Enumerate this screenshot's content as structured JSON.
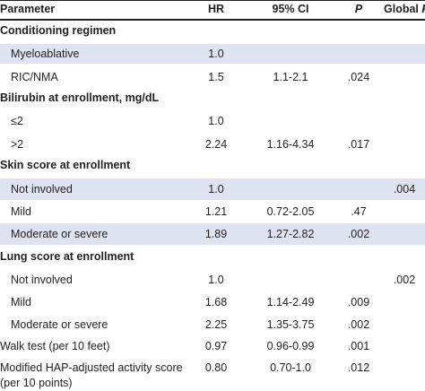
{
  "headers": {
    "parameter": "Parameter",
    "hr": "HR",
    "ci": "95% CI",
    "p": "P",
    "global_p": "Global P"
  },
  "sections": [
    {
      "title": "Conditioning regimen",
      "rows": [
        {
          "label": "Myeloablative",
          "hr": "1.0",
          "ci": "",
          "p": "",
          "global_p": "",
          "shaded": true
        },
        {
          "label": "RIC/NMA",
          "hr": "1.5",
          "ci": "1.1-2.1",
          "p": ".024",
          "global_p": "",
          "shaded": false
        }
      ]
    },
    {
      "title": "Bilirubin at enrollment, mg/dL",
      "rows": [
        {
          "label": "≤2",
          "hr": "1.0",
          "ci": "",
          "p": "",
          "global_p": "",
          "shaded": false
        },
        {
          "label": ">2",
          "hr": "2.24",
          "ci": "1.16-4.34",
          "p": ".017",
          "global_p": "",
          "shaded": false
        }
      ]
    },
    {
      "title": "Skin score at enrollment",
      "rows": [
        {
          "label": "Not involved",
          "hr": "1.0",
          "ci": "",
          "p": "",
          "global_p": ".004",
          "shaded": true
        },
        {
          "label": "Mild",
          "hr": "1.21",
          "ci": "0.72-2.05",
          "p": ".47",
          "global_p": "",
          "shaded": false
        },
        {
          "label": "Moderate or severe",
          "hr": "1.89",
          "ci": "1.27-2.82",
          "p": ".002",
          "global_p": "",
          "shaded": true
        }
      ]
    },
    {
      "title": "Lung score at enrollment",
      "rows": [
        {
          "label": "Not involved",
          "hr": "1.0",
          "ci": "",
          "p": "",
          "global_p": ".002",
          "shaded": false
        },
        {
          "label": "Mild",
          "hr": "1.68",
          "ci": "1.14-2.49",
          "p": ".009",
          "global_p": "",
          "shaded": false
        },
        {
          "label": "Moderate or severe",
          "hr": "2.25",
          "ci": "1.35-3.75",
          "p": ".002",
          "global_p": "",
          "shaded": false
        }
      ]
    }
  ],
  "extra_rows": [
    {
      "label": "Walk test (per 10 feet)",
      "hr": "0.97",
      "ci": "0.96-0.99",
      "p": ".001",
      "global_p": ""
    },
    {
      "label": "Modified HAP-adjusted activity score (per 10 points)",
      "hr": "0.80",
      "ci": "0.70-1.0",
      "p": ".012",
      "global_p": ""
    }
  ]
}
